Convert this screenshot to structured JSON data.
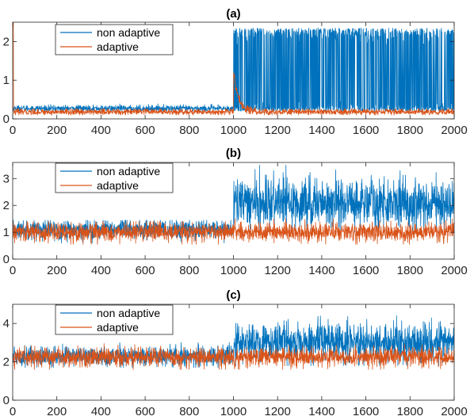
{
  "figure": {
    "colors": {
      "non_adaptive": "#0072BD",
      "adaptive": "#D95319",
      "axis": "#262626",
      "background": "#ffffff"
    }
  },
  "chart_data": [
    {
      "type": "line",
      "title": "(a)",
      "xlim": [
        0,
        2000
      ],
      "ylim": [
        0,
        2.5
      ],
      "x_ticks": [
        0,
        200,
        400,
        600,
        800,
        1000,
        1200,
        1400,
        1600,
        1800,
        2000
      ],
      "y_ticks": [
        0,
        1,
        2
      ],
      "legend": {
        "location": "top-left",
        "entries": [
          "non adaptive",
          "adaptive"
        ]
      },
      "series": [
        {
          "name": "non adaptive",
          "color": "#0072BD",
          "segments": [
            {
              "x_range": [
                0,
                1000
              ],
              "mean": 0.27,
              "noise": 0.04,
              "floor": 0.2,
              "ceiling": 0.42
            },
            {
              "x_range": [
                1000,
                2000
              ],
              "low": 0.2,
              "high": 2.35,
              "noise": 0.08
            }
          ]
        },
        {
          "name": "adaptive",
          "color": "#D95319",
          "segments": [
            {
              "x_range": [
                0,
                3
              ],
              "value": 2.5
            },
            {
              "x_range": [
                3,
                1000
              ],
              "mean": 0.18,
              "noise": 0.04,
              "floor": 0.1,
              "ceiling": 0.26
            },
            {
              "x_range": [
                1000,
                1100
              ],
              "spike_to": 1.3,
              "decay_to": 0.2
            },
            {
              "x_range": [
                1100,
                2000
              ],
              "mean": 0.18,
              "noise": 0.04,
              "floor": 0.1,
              "ceiling": 0.26
            }
          ]
        }
      ]
    },
    {
      "type": "line",
      "title": "(b)",
      "xlim": [
        0,
        2000
      ],
      "ylim": [
        0,
        3.6
      ],
      "x_ticks": [
        0,
        200,
        400,
        600,
        800,
        1000,
        1200,
        1400,
        1600,
        1800,
        2000
      ],
      "y_ticks": [
        0,
        1,
        2,
        3
      ],
      "legend": {
        "location": "top-left",
        "entries": [
          "non adaptive",
          "adaptive"
        ]
      },
      "series": [
        {
          "name": "non adaptive",
          "color": "#0072BD",
          "segments": [
            {
              "x_range": [
                0,
                1000
              ],
              "mean": 1.1,
              "noise": 0.18,
              "floor": 0.6,
              "ceiling": 1.45
            },
            {
              "x_range": [
                1000,
                2000
              ],
              "mean": 2.1,
              "noise": 0.45,
              "floor": 1.0,
              "ceiling": 3.5
            }
          ]
        },
        {
          "name": "adaptive",
          "color": "#D95319",
          "segments": [
            {
              "x_range": [
                0,
                1000
              ],
              "mean": 1.0,
              "noise": 0.18,
              "floor": 0.55,
              "ceiling": 1.4
            },
            {
              "x_range": [
                1000,
                2000
              ],
              "mean": 1.0,
              "noise": 0.18,
              "floor": 0.55,
              "ceiling": 1.5
            }
          ]
        }
      ]
    },
    {
      "type": "line",
      "title": "(c)",
      "xlim": [
        0,
        2000
      ],
      "ylim": [
        0,
        5
      ],
      "x_ticks": [
        0,
        200,
        400,
        600,
        800,
        1000,
        1200,
        1400,
        1600,
        1800,
        2000
      ],
      "y_ticks": [
        0,
        2,
        4
      ],
      "legend": {
        "location": "top-left",
        "entries": [
          "non adaptive",
          "adaptive"
        ]
      },
      "series": [
        {
          "name": "non adaptive",
          "color": "#0072BD",
          "segments": [
            {
              "x_range": [
                0,
                1000
              ],
              "mean": 2.3,
              "noise": 0.25,
              "floor": 1.7,
              "ceiling": 3.0
            },
            {
              "x_range": [
                1000,
                2000
              ],
              "mean": 3.0,
              "noise": 0.5,
              "floor": 1.8,
              "ceiling": 4.8
            }
          ]
        },
        {
          "name": "adaptive",
          "color": "#D95319",
          "segments": [
            {
              "x_range": [
                0,
                1000
              ],
              "mean": 2.25,
              "noise": 0.25,
              "floor": 1.6,
              "ceiling": 3.0
            },
            {
              "x_range": [
                1000,
                2000
              ],
              "mean": 2.25,
              "noise": 0.25,
              "floor": 1.6,
              "ceiling": 3.1
            }
          ]
        }
      ]
    }
  ]
}
